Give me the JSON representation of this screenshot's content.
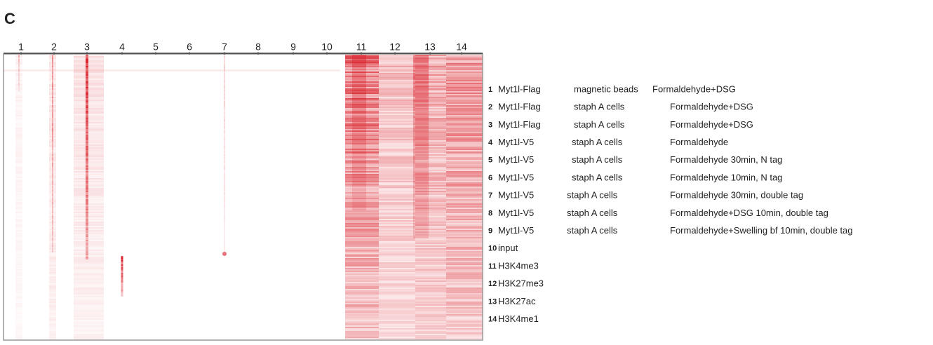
{
  "panel_label": "C",
  "column_labels": [
    1,
    2,
    3,
    4,
    5,
    6,
    7,
    8,
    9,
    10,
    11,
    12,
    13,
    14
  ],
  "legend": [
    {
      "number": 1,
      "antibody": "Myt1l-Flag",
      "method": "magnetic beads",
      "condition": "Formaldehyde+DSG"
    },
    {
      "number": 2,
      "antibody": "Myt1l-Flag",
      "method": "staph A cells",
      "condition": "Formaldehyde+DSG"
    },
    {
      "number": 3,
      "antibody": "Myt1l-Flag",
      "method": "staph A cells",
      "condition": "Formaldehyde+DSG"
    },
    {
      "number": 4,
      "antibody": "Myt1l-V5",
      "method": "staph A cells",
      "condition": "Formaldehyde"
    },
    {
      "number": 5,
      "antibody": "Myt1l-V5",
      "method": "staph A cells",
      "condition": "Formaldehyde 30min, N tag"
    },
    {
      "number": 6,
      "antibody": "Myt1l-V5",
      "method": "staph A cells",
      "condition": "Formaldehyde 10min, N tag"
    },
    {
      "number": 7,
      "antibody": "Myt1l-V5",
      "method": "staph A cells",
      "condition": "Formaldehyde 30min, double tag"
    },
    {
      "number": 8,
      "antibody": "Myt1l-V5",
      "method": "staph A cells",
      "condition": "Formaldehyde+DSG 10min, double tag"
    },
    {
      "number": 9,
      "antibody": "Myt1l-V5",
      "method": "staph A cells",
      "condition": "Formaldehyde+Swelling bf 10min, double tag"
    },
    {
      "number": 10,
      "antibody": "input"
    },
    {
      "number": 11,
      "antibody": "H3K4me3"
    },
    {
      "number": 12,
      "antibody": "H3K27me3"
    },
    {
      "number": 13,
      "antibody": "H3K27ac"
    },
    {
      "number": 14,
      "antibody": "H3K4me1"
    }
  ]
}
